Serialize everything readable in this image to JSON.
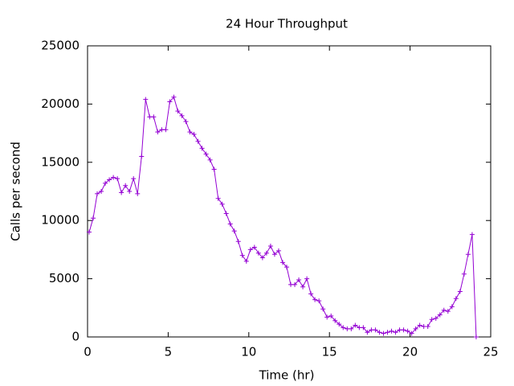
{
  "chart_data": {
    "type": "line",
    "title": "24 Hour Throughput",
    "x_label": "Time (hr)",
    "y_label": "Calls per second",
    "x": [
      0.1,
      0.35,
      0.6,
      0.85,
      1.1,
      1.35,
      1.6,
      1.85,
      2.1,
      2.35,
      2.6,
      2.85,
      3.1,
      3.35,
      3.6,
      3.85,
      4.1,
      4.35,
      4.6,
      4.85,
      5.1,
      5.35,
      5.6,
      5.85,
      6.1,
      6.35,
      6.6,
      6.85,
      7.1,
      7.35,
      7.6,
      7.85,
      8.1,
      8.35,
      8.6,
      8.85,
      9.1,
      9.35,
      9.6,
      9.85,
      10.1,
      10.35,
      10.6,
      10.85,
      11.1,
      11.35,
      11.6,
      11.85,
      12.1,
      12.35,
      12.6,
      12.85,
      13.1,
      13.35,
      13.6,
      13.85,
      14.1,
      14.35,
      14.6,
      14.85,
      15.1,
      15.35,
      15.6,
      15.85,
      16.1,
      16.35,
      16.6,
      16.85,
      17.1,
      17.35,
      17.6,
      17.85,
      18.1,
      18.35,
      18.6,
      18.85,
      19.1,
      19.35,
      19.6,
      19.85,
      20.1,
      20.35,
      20.6,
      20.85,
      21.1,
      21.35,
      21.6,
      21.85,
      22.1,
      22.35,
      22.6,
      22.85,
      23.1,
      23.35,
      23.6,
      23.85,
      24.1
    ],
    "series": [
      {
        "color": "#9400d3",
        "values": [
          9000,
          10200,
          12300,
          12500,
          13200,
          13500,
          13700,
          13600,
          12400,
          13000,
          12500,
          13600,
          12300,
          15500,
          20400,
          18900,
          18900,
          17600,
          17800,
          17800,
          20200,
          20600,
          19400,
          19000,
          18500,
          17600,
          17400,
          16800,
          16200,
          15700,
          15200,
          14400,
          11900,
          11400,
          10600,
          9700,
          9100,
          8200,
          7000,
          6500,
          7500,
          7700,
          7200,
          6800,
          7200,
          7800,
          7100,
          7400,
          6400,
          6000,
          4500,
          4500,
          4900,
          4300,
          5000,
          3700,
          3200,
          3100,
          2400,
          1700,
          1800,
          1400,
          1100,
          800,
          700,
          700,
          1000,
          800,
          800,
          400,
          600,
          600,
          400,
          300,
          400,
          500,
          400,
          600,
          600,
          500,
          300,
          700,
          1000,
          900,
          900,
          1500,
          1600,
          1900,
          2300,
          2200,
          2600,
          3300,
          3900,
          5400,
          7100,
          8800,
          0
        ]
      }
    ],
    "xlim": [
      0,
      25
    ],
    "xticks": [
      0,
      5,
      10,
      15,
      20,
      25
    ],
    "ylim": [
      0,
      25000
    ],
    "yticks": [
      0,
      5000,
      10000,
      15000,
      20000,
      25000
    ],
    "grid": false
  }
}
